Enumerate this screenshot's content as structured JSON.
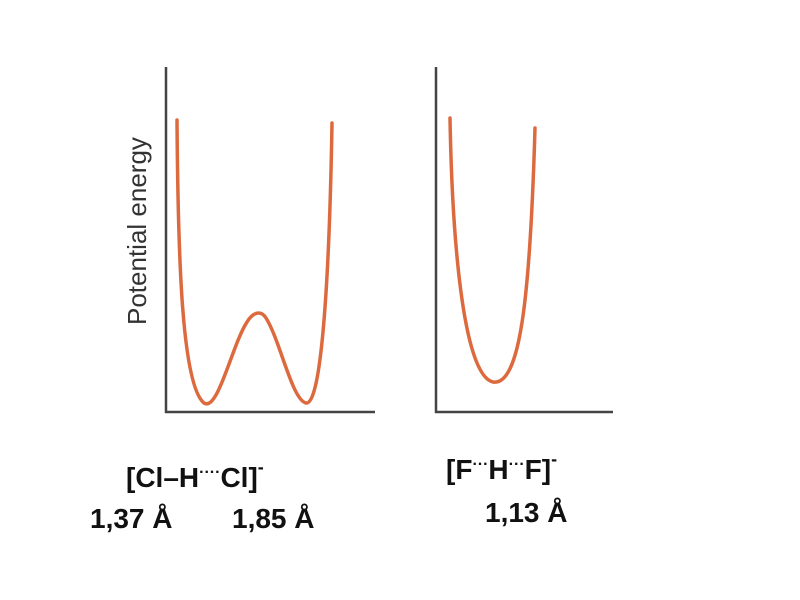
{
  "ylabel": "Potential energy",
  "colors": {
    "curve": "#dc6a3e",
    "axis": "#444444",
    "text": "#111111"
  },
  "left_panel": {
    "formula": {
      "open": "[Cl–H",
      "dots": "····",
      "close": "Cl]",
      "charge": "-"
    },
    "distances": [
      "1,37 Å",
      "1,85 Å"
    ],
    "curve_shape": "double-well"
  },
  "right_panel": {
    "formula": {
      "open": "[F",
      "dots1": "···",
      "mid": "H",
      "dots2": "···",
      "close": "F]",
      "charge": "-"
    },
    "distance": "1,13 Å",
    "curve_shape": "single-well"
  }
}
